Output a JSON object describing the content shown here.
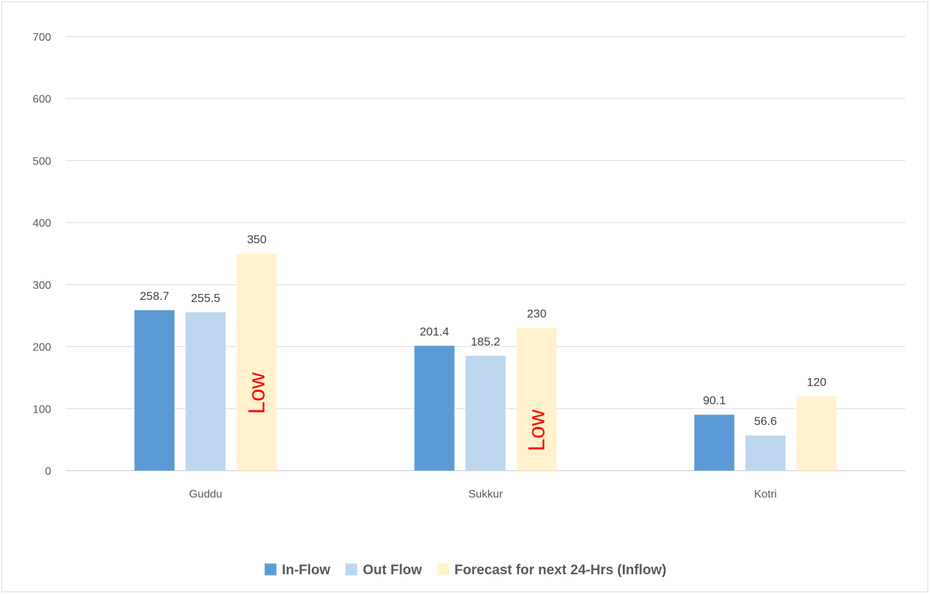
{
  "chart_data": {
    "type": "bar",
    "categories": [
      "Guddu",
      "Sukkur",
      "Kotri"
    ],
    "series": [
      {
        "name": "In-Flow",
        "color": "#5b9bd5",
        "values": [
          258.7,
          201.4,
          90.1
        ],
        "labels": [
          "258.7",
          "201.4",
          "90.1"
        ]
      },
      {
        "name": "Out Flow",
        "color": "#bdd7ee",
        "values": [
          255.5,
          185.2,
          56.6
        ],
        "labels": [
          "255.5",
          "185.2",
          "56.6"
        ]
      },
      {
        "name": "Forecast for next 24-Hrs (Inflow)",
        "color": "#fff2cc",
        "values": [
          350,
          230,
          120
        ],
        "labels": [
          "350",
          "230",
          "120"
        ]
      }
    ],
    "yticks": [
      "0",
      "100",
      "200",
      "300",
      "400",
      "500",
      "600",
      "700"
    ],
    "ylim": [
      0,
      700
    ],
    "grid": true,
    "legend_position": "bottom",
    "annotations": [
      {
        "text": "Low",
        "series": 2,
        "category": 0,
        "color": "#ff0000",
        "rotation": "vertical"
      },
      {
        "text": "Low",
        "series": 2,
        "category": 1,
        "color": "#ff0000",
        "rotation": "vertical"
      }
    ]
  }
}
